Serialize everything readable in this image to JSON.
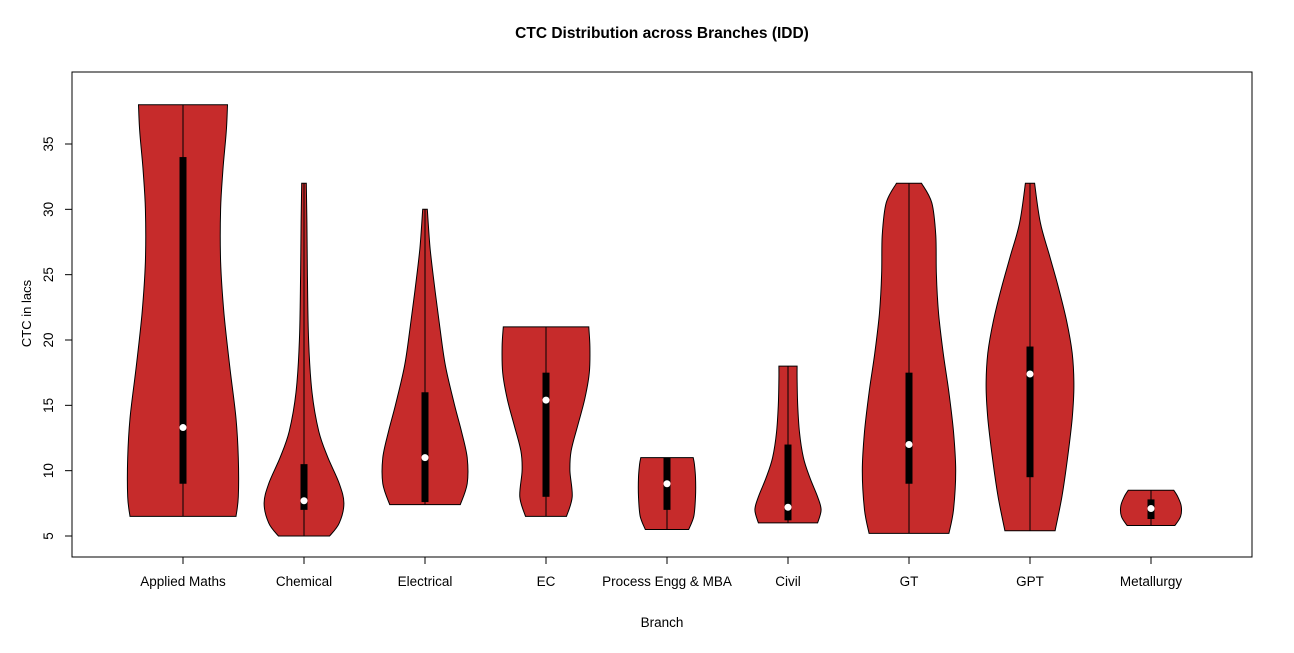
{
  "title": "CTC Distribution across Branches (IDD)",
  "colors": {
    "background": "#ffffff",
    "violin_fill": "#C62B2B",
    "violin_stroke": "#000000",
    "box_fill": "#000000",
    "whisker": "#000000",
    "median_dot": "#ffffff",
    "axis": "#000000",
    "text": "#000000"
  },
  "chart_data": {
    "type": "violin",
    "title": "CTC Distribution across Branches (IDD)",
    "xlabel": "Branch",
    "ylabel": "CTC in lacs",
    "ylim": [
      3.4,
      40.5
    ],
    "yticks": [
      5,
      10,
      15,
      20,
      25,
      30,
      35
    ],
    "grid": false,
    "legend_position": "none",
    "categories": [
      "Applied Maths",
      "Chemical",
      "Electrical",
      "EC",
      "Process Engg & MBA",
      "Civil",
      "GT",
      "GPT",
      "Metallurgy"
    ],
    "violins": [
      {
        "branch": "Applied Maths",
        "min": 6.5,
        "max": 38,
        "q1": 9,
        "q3": 34,
        "median": 13.3,
        "density_profile": [
          [
            6.5,
            0.93
          ],
          [
            8,
            0.97
          ],
          [
            11,
            0.97
          ],
          [
            14,
            0.93
          ],
          [
            18,
            0.82
          ],
          [
            22,
            0.72
          ],
          [
            26,
            0.66
          ],
          [
            30,
            0.66
          ],
          [
            33,
            0.7
          ],
          [
            36,
            0.76
          ],
          [
            38,
            0.78
          ]
        ]
      },
      {
        "branch": "Chemical",
        "min": 5,
        "max": 32,
        "q1": 7,
        "q3": 10.5,
        "median": 7.7,
        "density_profile": [
          [
            5,
            0.45
          ],
          [
            6,
            0.62
          ],
          [
            7.5,
            0.7
          ],
          [
            9,
            0.62
          ],
          [
            11,
            0.42
          ],
          [
            13,
            0.26
          ],
          [
            16,
            0.14
          ],
          [
            20,
            0.08
          ],
          [
            25,
            0.06
          ],
          [
            29,
            0.05
          ],
          [
            32,
            0.04
          ]
        ]
      },
      {
        "branch": "Electrical",
        "min": 7.4,
        "max": 30,
        "q1": 7.6,
        "q3": 16,
        "median": 11,
        "density_profile": [
          [
            7.4,
            0.62
          ],
          [
            9,
            0.74
          ],
          [
            11,
            0.74
          ],
          [
            13,
            0.64
          ],
          [
            15,
            0.52
          ],
          [
            18,
            0.36
          ],
          [
            21,
            0.26
          ],
          [
            24,
            0.17
          ],
          [
            27,
            0.09
          ],
          [
            30,
            0.04
          ]
        ]
      },
      {
        "branch": "EC",
        "min": 6.5,
        "max": 21,
        "q1": 8,
        "q3": 17.5,
        "median": 15.4,
        "density_profile": [
          [
            6.5,
            0.36
          ],
          [
            8,
            0.46
          ],
          [
            10,
            0.42
          ],
          [
            11.5,
            0.44
          ],
          [
            13.5,
            0.56
          ],
          [
            15.5,
            0.68
          ],
          [
            17.5,
            0.76
          ],
          [
            19.5,
            0.77
          ],
          [
            21,
            0.75
          ]
        ]
      },
      {
        "branch": "Process Engg & MBA",
        "min": 5.5,
        "max": 11,
        "q1": 7,
        "q3": 11,
        "median": 9,
        "density_profile": [
          [
            5.5,
            0.38
          ],
          [
            6.5,
            0.47
          ],
          [
            8,
            0.5
          ],
          [
            9.5,
            0.5
          ],
          [
            10.5,
            0.48
          ],
          [
            11,
            0.46
          ]
        ]
      },
      {
        "branch": "Civil",
        "min": 6,
        "max": 18,
        "q1": 6.2,
        "q3": 12,
        "median": 7.2,
        "density_profile": [
          [
            6,
            0.52
          ],
          [
            7,
            0.58
          ],
          [
            8,
            0.52
          ],
          [
            9.5,
            0.38
          ],
          [
            11,
            0.27
          ],
          [
            13,
            0.2
          ],
          [
            15,
            0.17
          ],
          [
            17,
            0.16
          ],
          [
            18,
            0.16
          ]
        ]
      },
      {
        "branch": "GT",
        "min": 5.2,
        "max": 32,
        "q1": 9,
        "q3": 17.5,
        "median": 12,
        "density_profile": [
          [
            5.2,
            0.7
          ],
          [
            7,
            0.78
          ],
          [
            10,
            0.82
          ],
          [
            13,
            0.78
          ],
          [
            16,
            0.7
          ],
          [
            19,
            0.6
          ],
          [
            22,
            0.52
          ],
          [
            25,
            0.48
          ],
          [
            28,
            0.47
          ],
          [
            30.5,
            0.4
          ],
          [
            32,
            0.22
          ]
        ]
      },
      {
        "branch": "GPT",
        "min": 5.4,
        "max": 32,
        "q1": 9.5,
        "q3": 19.5,
        "median": 17.4,
        "density_profile": [
          [
            5.4,
            0.44
          ],
          [
            8,
            0.56
          ],
          [
            11,
            0.66
          ],
          [
            14,
            0.74
          ],
          [
            16.5,
            0.77
          ],
          [
            19,
            0.74
          ],
          [
            21.5,
            0.64
          ],
          [
            24,
            0.5
          ],
          [
            26.5,
            0.34
          ],
          [
            29,
            0.18
          ],
          [
            32,
            0.08
          ]
        ]
      },
      {
        "branch": "Metallurgy",
        "min": 5.8,
        "max": 8.5,
        "q1": 6.3,
        "q3": 7.8,
        "median": 7.1,
        "density_profile": [
          [
            5.8,
            0.42
          ],
          [
            6.5,
            0.52
          ],
          [
            7.3,
            0.53
          ],
          [
            8,
            0.47
          ],
          [
            8.5,
            0.4
          ]
        ]
      }
    ]
  }
}
